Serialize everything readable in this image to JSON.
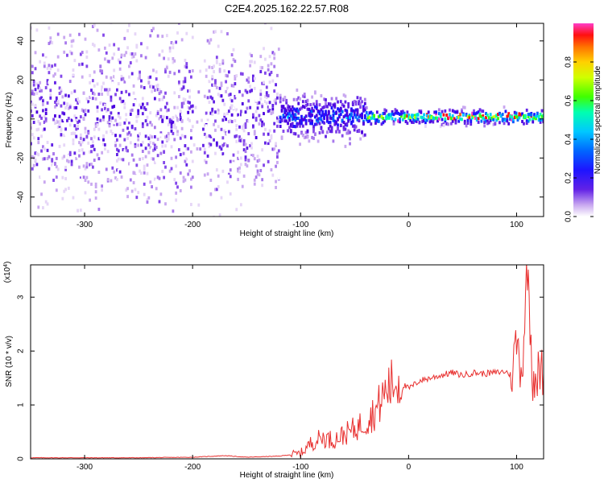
{
  "title": "C2E4.2025.162.22.57.R08",
  "colors": {
    "spectrogram": [
      "#ffffff",
      "#e6d6f7",
      "#c9a8f0",
      "#a879ec",
      "#8448ea",
      "#6222e6",
      "#4b00e0",
      "#1e14ff",
      "#0066ff",
      "#00c8ff",
      "#00ffb0",
      "#40ff00",
      "#d0ff00",
      "#ffd000",
      "#ff7000",
      "#ff1010",
      "#ff3cc8"
    ],
    "snr_line": "#e8302f"
  },
  "chart_data": [
    {
      "type": "heatmap",
      "title": "C2E4.2025.162.22.57.R08",
      "xlabel": "Height of straight line (km)",
      "ylabel": "Frequency (Hz)",
      "xlim": [
        -350,
        125
      ],
      "ylim": [
        -50,
        49
      ],
      "x_ticks": [
        -300,
        -200,
        -100,
        0,
        100
      ],
      "y_ticks": [
        -40,
        -20,
        0,
        20,
        40
      ],
      "colorbar": {
        "label": "Normalized spectral amplitude",
        "range": [
          0,
          1
        ],
        "ticks": [
          0.0,
          0.2,
          0.4,
          0.6,
          0.8
        ]
      },
      "grid": false
    },
    {
      "type": "line",
      "xlabel": "Height of straight line (km)",
      "ylabel": "SNR (10 * v/v)",
      "y_multiplier_label": "(x10^4)",
      "xlim": [
        -350,
        125
      ],
      "ylim": [
        0,
        3.6
      ],
      "x_ticks": [
        -300,
        -200,
        -100,
        0,
        100
      ],
      "y_ticks": [
        0,
        1,
        2,
        3
      ],
      "series": [
        {
          "x": [
            -350,
            -300,
            -250,
            -200,
            -170,
            -150,
            -120,
            -100,
            -90,
            -80,
            -70,
            -60,
            -50,
            -40,
            -30,
            -20,
            -10,
            0,
            10,
            20,
            30,
            40,
            50,
            60,
            70,
            80,
            90,
            95,
            100,
            105,
            110,
            115,
            125
          ],
          "values": [
            0.02,
            0.02,
            0.02,
            0.03,
            0.06,
            0.03,
            0.05,
            0.1,
            0.3,
            0.4,
            0.35,
            0.45,
            0.55,
            0.7,
            0.9,
            1.3,
            1.45,
            1.3,
            1.45,
            1.5,
            1.55,
            1.6,
            1.55,
            1.6,
            1.58,
            1.6,
            1.62,
            1.55,
            2.2,
            1.6,
            3.6,
            1.55,
            1.58
          ]
        }
      ],
      "grid": false
    }
  ]
}
